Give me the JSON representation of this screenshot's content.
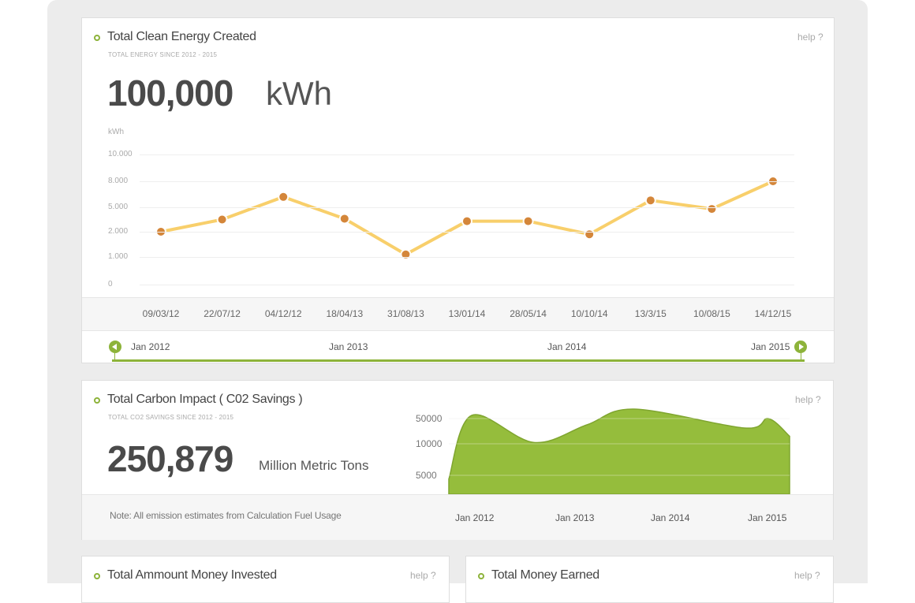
{
  "energy_card": {
    "title": "Total Clean Energy Created",
    "subtitle": "TOTAL ENERGY SINCE 2012 - 2015",
    "help": "help ?",
    "value": "100,000",
    "unit": "kWh"
  },
  "carbon_card": {
    "title": "Total Carbon Impact ( C02 Savings )",
    "subtitle": "TOTAL CO2 SAVINGS SINCE 2012 - 2015",
    "help": "help ?",
    "value": "250,879",
    "unit": "Million Metric Tons",
    "note": "Note: All emission estimates from Calculation Fuel Usage"
  },
  "invested_card": {
    "title": "Total Ammount Money Invested",
    "help": "help ?"
  },
  "earned_card": {
    "title": "Total Money Earned",
    "help": "help ?"
  },
  "timeline": {
    "labels": [
      "Jan 2012",
      "Jan 2013",
      "Jan 2014",
      "Jan 2015"
    ]
  },
  "colors": {
    "accent_green": "#8db33a",
    "line": "#f8cf6b",
    "point": "#d4863a",
    "area": "#95bd3c"
  },
  "chart_data": [
    {
      "type": "line",
      "ylabel": "kWh",
      "y_ticks": [
        "0",
        "1.000",
        "2.000",
        "5.000",
        "8.000",
        "10.000"
      ],
      "categories": [
        "09/03/12",
        "22/07/12",
        "04/12/12",
        "18/04/13",
        "31/08/13",
        "13/01/14",
        "28/05/14",
        "10/10/14",
        "13/3/15",
        "10/08/15",
        "14/12/15"
      ],
      "values": [
        2000,
        3500,
        6200,
        3600,
        1100,
        3300,
        3300,
        1900,
        5800,
        4800,
        8000
      ],
      "grid": true,
      "legend": "none"
    },
    {
      "type": "area",
      "y_ticks": [
        "5000",
        "10000",
        "50000"
      ],
      "x_ticks": [
        "Jan 2012",
        "Jan 2013",
        "Jan 2014",
        "Jan 2015"
      ],
      "x": [
        "Jan 2012",
        "Apr 2012",
        "Oct 2012",
        "Jun 2013",
        "Feb 2014",
        "Oct 2014",
        "Jan 2015",
        "Mar 2015"
      ],
      "values": [
        4000,
        60000,
        12000,
        40000,
        80000,
        35000,
        50000,
        22000
      ],
      "grid": true,
      "legend": "none"
    }
  ]
}
